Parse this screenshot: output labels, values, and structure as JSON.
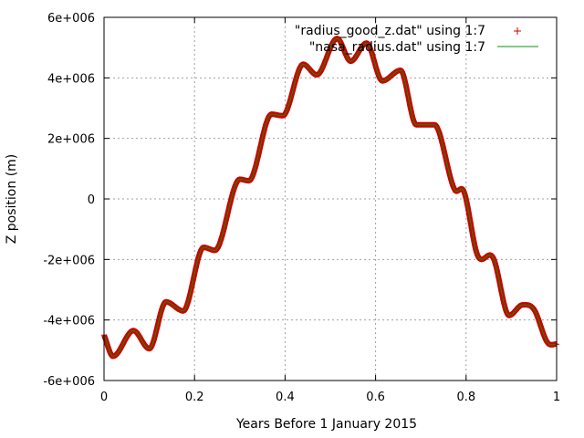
{
  "chart_data": {
    "type": "line",
    "title": "",
    "xlabel": "Years Before 1 January 2015",
    "ylabel": "Z position (m)",
    "xlim": [
      0,
      1
    ],
    "ylim": [
      -6000000,
      6000000
    ],
    "grid": true,
    "legend_position": "top-right",
    "x_ticks": [
      {
        "value": 0,
        "label": "0"
      },
      {
        "value": 0.2,
        "label": "0.2"
      },
      {
        "value": 0.4,
        "label": "0.4"
      },
      {
        "value": 0.6,
        "label": "0.6"
      },
      {
        "value": 0.8,
        "label": "0.8"
      },
      {
        "value": 1,
        "label": "1"
      }
    ],
    "y_ticks": [
      {
        "value": -6000000,
        "label": "-6e+006"
      },
      {
        "value": -4000000,
        "label": "-4e+006"
      },
      {
        "value": -2000000,
        "label": "-2e+006"
      },
      {
        "value": 0,
        "label": "0"
      },
      {
        "value": 2000000,
        "label": "2e+006"
      },
      {
        "value": 4000000,
        "label": "4e+006"
      },
      {
        "value": 6000000,
        "label": "6e+006"
      }
    ],
    "x": [
      0,
      0.02,
      0.065,
      0.1,
      0.137,
      0.175,
      0.22,
      0.245,
      0.3,
      0.32,
      0.37,
      0.395,
      0.44,
      0.47,
      0.515,
      0.545,
      0.58,
      0.615,
      0.655,
      0.69,
      0.73,
      0.775,
      0.795,
      0.825,
      0.86,
      0.895,
      0.925,
      0.95,
      0.98,
      1
    ],
    "series": [
      {
        "name": "\"radius_good_z.dat\" using 1:7",
        "color": "#cc0000",
        "style": "points",
        "marker": "+",
        "values": [
          -4500000,
          -5200000,
          -4350000,
          -4950000,
          -3400000,
          -3700000,
          -1600000,
          -1700000,
          650000,
          600000,
          2800000,
          2750000,
          4450000,
          4100000,
          5300000,
          4550000,
          5150000,
          3900000,
          4250000,
          2450000,
          2450000,
          300000,
          250000,
          -1850000,
          -1950000,
          -3850000,
          -3500000,
          -3650000,
          -4750000,
          -4800000
        ]
      },
      {
        "name": "\"nasa_radius.dat\" using 1:7",
        "color": "#009900",
        "style": "line",
        "values": [
          -4500000,
          -5200000,
          -4350000,
          -4950000,
          -3400000,
          -3700000,
          -1600000,
          -1700000,
          650000,
          600000,
          2800000,
          2750000,
          4450000,
          4100000,
          5300000,
          4550000,
          5150000,
          3900000,
          4250000,
          2450000,
          2450000,
          300000,
          250000,
          -1850000,
          -1950000,
          -3850000,
          -3500000,
          -3650000,
          -4750000,
          -4800000
        ]
      }
    ]
  }
}
